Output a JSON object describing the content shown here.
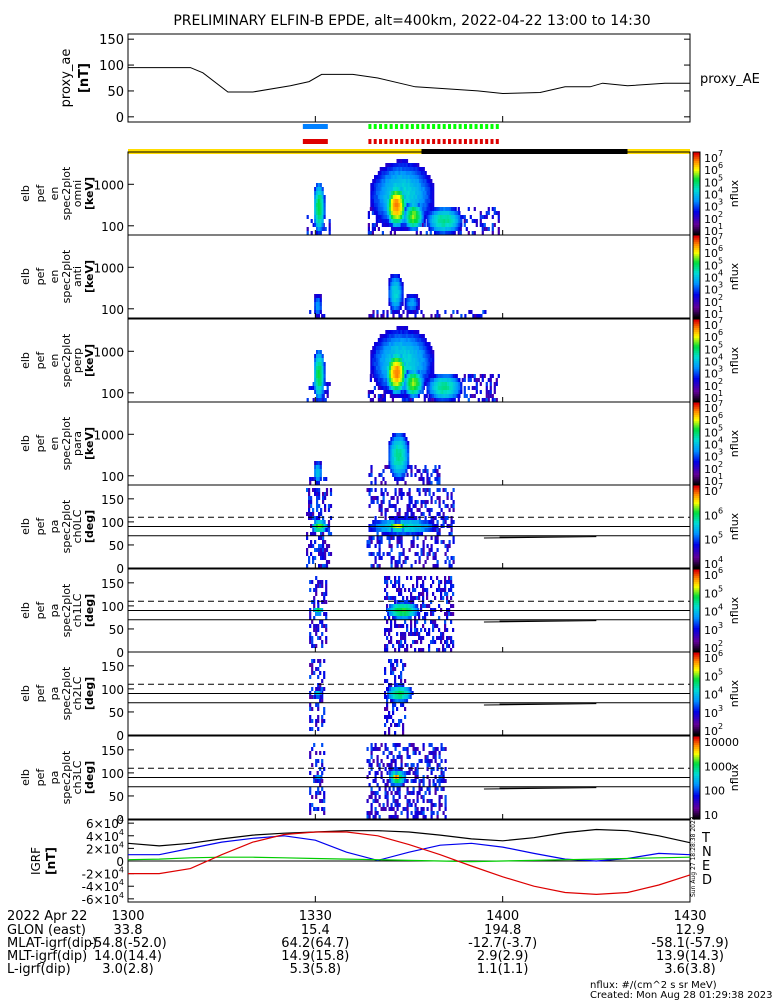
{
  "title": "PRELIMINARY ELFIN-B EPDE, alt=400km, 2022-04-22 13:00 to 14:30",
  "x_axis": {
    "date": "2022 Apr 22",
    "ticks": [
      "1300",
      "1330",
      "1400",
      "1430"
    ],
    "rows": [
      {
        "label": "GLON (east)",
        "values": [
          "33.8",
          "15.4",
          "194.8",
          "12.9"
        ]
      },
      {
        "label": "MLAT-igrf(dip)",
        "values": [
          "-54.8(-52.0)",
          "64.2(64.7)",
          "-12.7(-3.7)",
          "-58.1(-57.9)"
        ]
      },
      {
        "label": "MLT-igrf(dip)",
        "values": [
          "14.0(14.4)",
          "14.9(15.8)",
          "2.9(2.9)",
          "13.9(14.3)"
        ]
      },
      {
        "label": "L-igrf(dip)",
        "values": [
          "3.0(2.8)",
          "5.3(5.8)",
          "1.1(1.1)",
          "3.6(3.8)"
        ]
      }
    ]
  },
  "footer": {
    "units": "nflux: #/(cm^2 s sr MeV)",
    "created": "Created: Mon Aug 28 01:29:38 2023",
    "side_stamp": "Sun Aug 27 18:28:38 2023"
  },
  "chart_data": [
    {
      "type": "line",
      "id": "proxy_ae",
      "ylabel": [
        "proxy_ae",
        "[nT]"
      ],
      "series_label": "proxy_AE",
      "yticks": [
        "150",
        "100",
        "50",
        "0"
      ],
      "ylim": [
        -10,
        160
      ],
      "x_minutes": [
        0,
        10,
        12,
        16,
        20,
        26,
        29,
        31,
        36,
        40,
        46,
        50,
        56,
        60,
        66,
        70,
        74,
        76,
        80,
        86,
        90
      ],
      "values": [
        95,
        95,
        85,
        48,
        48,
        60,
        68,
        82,
        82,
        75,
        58,
        55,
        50,
        45,
        47,
        58,
        58,
        65,
        60,
        65,
        65
      ]
    },
    {
      "type": "bar",
      "id": "status-bars",
      "segments": [
        {
          "color": "#0080ff",
          "x": [
            28,
            32
          ],
          "row": 0,
          "style": "solid"
        },
        {
          "color": "#dd0000",
          "x": [
            28,
            32
          ],
          "row": 1,
          "style": "solid"
        },
        {
          "color": "#00ff00",
          "x": [
            38.5,
            59.5
          ],
          "row": 0,
          "style": "dashed"
        },
        {
          "color": "#dd0000",
          "x": [
            38.5,
            59.5
          ],
          "row": 1,
          "style": "dashed"
        },
        {
          "color": "#ffdd00",
          "x": [
            0,
            47
          ],
          "row": 2,
          "style": "solid"
        },
        {
          "color": "#000000",
          "x": [
            47,
            80
          ],
          "row": 2,
          "style": "solid"
        },
        {
          "color": "#ffdd00",
          "x": [
            80,
            90
          ],
          "row": 2,
          "style": "solid"
        }
      ]
    },
    {
      "type": "heatmap",
      "id": "elb_pef_en_spec2plot_omni",
      "ylabel": [
        "elb",
        "pef",
        "en",
        "spec2plot",
        "omni",
        "[keV]"
      ],
      "yscale": "log",
      "ylim": [
        60,
        6000
      ],
      "yticks": [
        {
          "label": "1000",
          "v": 1000
        },
        {
          "label": "100",
          "v": 100
        }
      ],
      "colorbar": {
        "label": "nflux",
        "ticks": [
          "10",
          "10",
          "10",
          "10",
          "10",
          "10",
          "10"
        ],
        "exps": [
          "7",
          "6",
          "5",
          "4",
          "3",
          "2",
          "1"
        ],
        "cmin": 1,
        "cmax": 7
      },
      "blobs": [
        [
          29.5,
          31.4,
          0,
          1.3,
          5.2
        ],
        [
          38.5,
          49,
          0.1,
          1.8,
          4.4
        ],
        [
          41.2,
          44.5,
          0.2,
          1.2,
          6.6
        ],
        [
          44.0,
          47.2,
          0.1,
          0.8,
          5.6
        ],
        [
          47.5,
          53.5,
          0,
          0.7,
          4.8
        ]
      ],
      "noise": [
        [
          28.6,
          32.4,
          0,
          0.5
        ],
        [
          38.4,
          59.5,
          0,
          0.7
        ]
      ]
    },
    {
      "type": "heatmap",
      "id": "elb_pef_en_spec2plot_anti",
      "ylabel": [
        "elb",
        "pef",
        "en",
        "spec2plot",
        "anti",
        "[keV]"
      ],
      "yscale": "log",
      "ylim": [
        60,
        6000
      ],
      "yticks": [
        {
          "label": "1000",
          "v": 1000
        },
        {
          "label": "100",
          "v": 100
        }
      ],
      "colorbar": {
        "label": "nflux",
        "ticks": [
          "10",
          "10",
          "10",
          "10",
          "10",
          "10",
          "10"
        ],
        "exps": [
          "7",
          "6",
          "5",
          "4",
          "3",
          "2",
          "1"
        ],
        "cmin": 1,
        "cmax": 7
      },
      "blobs": [
        [
          29.5,
          31.0,
          0,
          0.6,
          3.8
        ],
        [
          41.4,
          44.0,
          0.1,
          1.1,
          4.4
        ],
        [
          44.0,
          46.6,
          0.1,
          0.6,
          3.8
        ]
      ],
      "noise": [
        [
          29.0,
          31.8,
          0,
          0.2
        ],
        [
          38.5,
          58,
          0,
          0.25
        ]
      ]
    },
    {
      "type": "heatmap",
      "id": "elb_pef_en_spec2plot_perp",
      "ylabel": [
        "elb",
        "pef",
        "en",
        "spec2plot",
        "perp",
        "[keV]"
      ],
      "yscale": "log",
      "ylim": [
        60,
        6000
      ],
      "yticks": [
        {
          "label": "1000",
          "v": 1000
        },
        {
          "label": "100",
          "v": 100
        }
      ],
      "colorbar": {
        "label": "nflux",
        "ticks": [
          "10",
          "10",
          "10",
          "10",
          "10",
          "10",
          "10"
        ],
        "exps": [
          "7",
          "6",
          "5",
          "4",
          "3",
          "2",
          "1"
        ],
        "cmin": 1,
        "cmax": 7
      },
      "blobs": [
        [
          29.5,
          31.4,
          0,
          1.3,
          5.2
        ],
        [
          38.5,
          49,
          0.1,
          1.8,
          4.4
        ],
        [
          41.2,
          44.5,
          0.2,
          1.2,
          6.6
        ],
        [
          44.0,
          47.2,
          0.1,
          0.8,
          5.6
        ],
        [
          47.5,
          53.5,
          0,
          0.7,
          4.8
        ]
      ],
      "noise": [
        [
          28.6,
          32.4,
          0,
          0.5
        ],
        [
          38.4,
          59.5,
          0,
          0.7
        ]
      ]
    },
    {
      "type": "heatmap",
      "id": "elb_pef_en_spec2plot_para",
      "ylabel": [
        "elb",
        "pef",
        "en",
        "spec2plot",
        "para",
        "[keV]"
      ],
      "yscale": "log",
      "ylim": [
        60,
        6000
      ],
      "yticks": [
        {
          "label": "1000",
          "v": 1000
        },
        {
          "label": "100",
          "v": 100
        }
      ],
      "colorbar": {
        "label": "nflux",
        "ticks": [
          "10",
          "10",
          "10",
          "10",
          "10",
          "10",
          "10"
        ],
        "exps": [
          "7",
          "6",
          "5",
          "4",
          "3",
          "2",
          "1"
        ],
        "cmin": 1,
        "cmax": 7
      },
      "blobs": [
        [
          29.5,
          31.0,
          0,
          0.6,
          4.2
        ],
        [
          41.4,
          45.0,
          0.1,
          1.3,
          4.8
        ]
      ],
      "noise": [
        [
          29.0,
          31.8,
          0,
          0.25
        ],
        [
          38.5,
          50,
          0,
          0.5
        ]
      ]
    },
    {
      "type": "heatmap",
      "id": "elb_pef_pa_spec2plot_ch0LC",
      "ylabel": [
        "elb",
        "pef",
        "pa",
        "spec2plot",
        "ch0LC",
        "[deg]"
      ],
      "yscale": "linear",
      "ylim": [
        0,
        180
      ],
      "yticks": [
        {
          "label": "150",
          "v": 150
        },
        {
          "label": "100",
          "v": 100
        },
        {
          "label": "50",
          "v": 50
        },
        {
          "label": "0",
          "v": 0
        }
      ],
      "colorbar": {
        "label": "nflux",
        "ticks": [
          "10",
          "10",
          "10",
          "10"
        ],
        "exps": [
          "7",
          "6",
          "5",
          "4"
        ],
        "cmin": 3,
        "cmax": 7
      },
      "blobs": [
        [
          29.2,
          31.8,
          75,
          105,
          6.0
        ],
        [
          38.2,
          49.5,
          70,
          110,
          5.4
        ],
        [
          41.5,
          44.5,
          80,
          100,
          6.4
        ]
      ],
      "noise": [
        [
          28.5,
          32.5,
          0,
          180
        ],
        [
          38.2,
          52,
          0,
          180
        ]
      ],
      "lines": {
        "solid": [
          90,
          70
        ],
        "dashed": 110,
        "trace": [
          [
            57,
            65
          ],
          [
            75,
            68
          ]
        ]
      }
    },
    {
      "type": "heatmap",
      "id": "elb_pef_pa_spec2plot_ch1LC",
      "ylabel": [
        "elb",
        "pef",
        "pa",
        "spec2plot",
        "ch1LC",
        "[deg]"
      ],
      "yscale": "linear",
      "ylim": [
        0,
        180
      ],
      "yticks": [
        {
          "label": "150",
          "v": 150
        },
        {
          "label": "100",
          "v": 100
        },
        {
          "label": "50",
          "v": 50
        },
        {
          "label": "0",
          "v": 0
        }
      ],
      "colorbar": {
        "label": "nflux",
        "ticks": [
          "10",
          "10",
          "10",
          "10",
          "10"
        ],
        "exps": [
          "6",
          "5",
          "4",
          "3",
          "2"
        ],
        "cmin": 2,
        "cmax": 7
      },
      "blobs": [
        [
          29.4,
          31.2,
          80,
          100,
          5.4
        ],
        [
          41.2,
          46.5,
          70,
          110,
          5.6
        ]
      ],
      "noise": [
        [
          29.0,
          31.8,
          10,
          170
        ],
        [
          41.0,
          52,
          0,
          170
        ]
      ],
      "lines": {
        "solid": [
          90,
          70
        ],
        "dashed": 110,
        "trace": [
          [
            57,
            65
          ],
          [
            75,
            68
          ]
        ]
      }
    },
    {
      "type": "heatmap",
      "id": "elb_pef_pa_spec2plot_ch2LC",
      "ylabel": [
        "elb",
        "pef",
        "pa",
        "spec2plot",
        "ch2LC",
        "[deg]"
      ],
      "yscale": "linear",
      "ylim": [
        0,
        180
      ],
      "yticks": [
        {
          "label": "150",
          "v": 150
        },
        {
          "label": "100",
          "v": 100
        },
        {
          "label": "50",
          "v": 50
        },
        {
          "label": "0",
          "v": 0
        }
      ],
      "colorbar": {
        "label": "nflux",
        "ticks": [
          "10",
          "10",
          "10",
          "10",
          "10"
        ],
        "exps": [
          "6",
          "5",
          "4",
          "3",
          "2"
        ],
        "cmin": 2,
        "cmax": 7
      },
      "blobs": [
        [
          29.5,
          31.0,
          80,
          100,
          4.8
        ],
        [
          41.2,
          45.5,
          70,
          110,
          5.4
        ]
      ],
      "noise": [
        [
          29.0,
          31.5,
          10,
          170
        ],
        [
          41.0,
          44.5,
          0,
          170
        ]
      ],
      "lines": {
        "solid": [
          90,
          70
        ],
        "dashed": 110,
        "trace": [
          [
            57,
            65
          ],
          [
            75,
            68
          ]
        ]
      }
    },
    {
      "type": "heatmap",
      "id": "elb_pef_pa_spec2plot_ch3LC",
      "ylabel": [
        "elb",
        "pef",
        "pa",
        "spec2plot",
        "ch3LC",
        "[deg]"
      ],
      "yscale": "linear",
      "ylim": [
        0,
        180
      ],
      "yticks": [
        {
          "label": "150",
          "v": 150
        },
        {
          "label": "100",
          "v": 100
        },
        {
          "label": "50",
          "v": 50
        },
        {
          "label": "0",
          "v": 0
        }
      ],
      "colorbar": {
        "label": "nflux",
        "ticks": [
          "10000",
          "1000",
          "100",
          "10"
        ],
        "exps": [
          "",
          "",
          "",
          ""
        ],
        "cmin": 1,
        "cmax": 4
      },
      "blobs": [
        [
          29.6,
          31.0,
          80,
          100,
          2.5
        ],
        [
          41.5,
          44.5,
          70,
          110,
          3.2
        ],
        [
          42.2,
          43.6,
          85,
          100,
          3.9
        ]
      ],
      "noise": [
        [
          29.0,
          31.5,
          10,
          170
        ],
        [
          38.2,
          51,
          0,
          170
        ]
      ],
      "lines": {
        "solid": [
          90,
          70
        ],
        "dashed": 110,
        "trace": [
          [
            57,
            65
          ],
          [
            75,
            68
          ]
        ]
      }
    },
    {
      "type": "line",
      "id": "igrf",
      "ylabel": [
        "IGRF",
        "[nT]"
      ],
      "yticks": [
        {
          "m": "6",
          "e": "4",
          "v": 60000
        },
        {
          "m": "4",
          "e": "4",
          "v": 40000
        },
        {
          "m": "2",
          "e": "4",
          "v": 20000
        },
        {
          "m": "0",
          "e": "",
          "v": 0
        },
        {
          "m": "-2",
          "e": "4",
          "v": -20000
        },
        {
          "m": "-4",
          "e": "4",
          "v": -40000
        },
        {
          "m": "-6",
          "e": "4",
          "v": -60000
        }
      ],
      "ylim": [
        -65000,
        65000
      ],
      "x_minutes": [
        0,
        5,
        10,
        15,
        20,
        25,
        30,
        35,
        40,
        45,
        50,
        55,
        60,
        65,
        70,
        75,
        80,
        85,
        90
      ],
      "series": [
        {
          "name": "T",
          "color": "#000000",
          "values": [
            28000,
            24000,
            28000,
            35000,
            41000,
            44000,
            46000,
            48000,
            48000,
            46000,
            41000,
            35000,
            32000,
            37000,
            45000,
            50000,
            48000,
            40000,
            29000
          ]
        },
        {
          "name": "N",
          "color": "#0000ee",
          "values": [
            10000,
            10000,
            20000,
            30000,
            36000,
            40000,
            33000,
            14000,
            1000,
            14000,
            25000,
            28000,
            22000,
            12000,
            3000,
            0,
            4000,
            12000,
            10000
          ]
        },
        {
          "name": "E",
          "color": "#00cc00",
          "values": [
            2000,
            3000,
            5000,
            6000,
            6000,
            5000,
            4000,
            3000,
            2000,
            1000,
            0,
            -1000,
            0,
            1000,
            2000,
            3000,
            4000,
            5000,
            6000
          ]
        },
        {
          "name": "D",
          "color": "#dd0000",
          "values": [
            -20000,
            -20000,
            -12000,
            10000,
            30000,
            42000,
            46000,
            46000,
            40000,
            26000,
            10000,
            -8000,
            -25000,
            -40000,
            -50000,
            -53000,
            -50000,
            -38000,
            -22000
          ]
        }
      ]
    }
  ]
}
